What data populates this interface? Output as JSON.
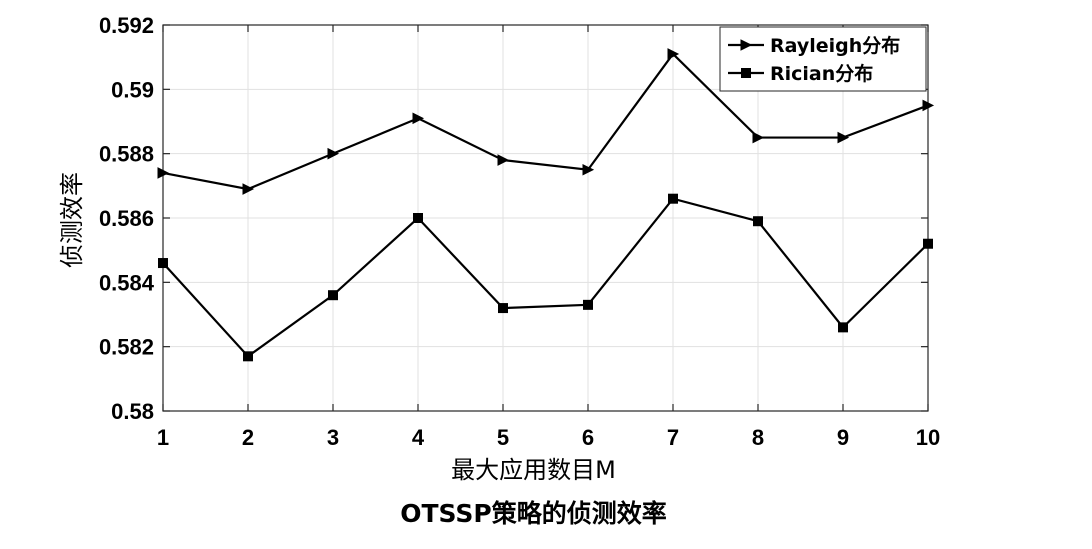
{
  "chart_data": {
    "type": "line",
    "x": [
      1,
      2,
      3,
      4,
      5,
      6,
      7,
      8,
      9,
      10
    ],
    "xticks": [
      "1",
      "2",
      "3",
      "4",
      "5",
      "6",
      "7",
      "8",
      "9",
      "10"
    ],
    "xlim": [
      1,
      10
    ],
    "ylim": [
      0.58,
      0.592
    ],
    "yticks": [
      0.58,
      0.582,
      0.584,
      0.586,
      0.588,
      0.59,
      0.592
    ],
    "yticklabels": [
      "0.58",
      "0.582",
      "0.584",
      "0.586",
      "0.588",
      "0.59",
      "0.592"
    ],
    "xlabel": "最大应用数目M",
    "ylabel": "侦测效率",
    "caption": "OTSSP策略的侦测效率",
    "grid": true,
    "legend_position": "top-right",
    "series": [
      {
        "name": "Rayleigh分布",
        "marker": "triangle-right",
        "color": "#000000",
        "values": [
          0.5874,
          0.5869,
          0.588,
          0.5891,
          0.5878,
          0.5875,
          0.5911,
          0.5885,
          0.5885,
          0.5895
        ]
      },
      {
        "name": "Rician分布",
        "marker": "square",
        "color": "#000000",
        "values": [
          0.5846,
          0.5817,
          0.5836,
          0.586,
          0.5832,
          0.5833,
          0.5866,
          0.5859,
          0.5826,
          0.5852
        ]
      }
    ]
  }
}
